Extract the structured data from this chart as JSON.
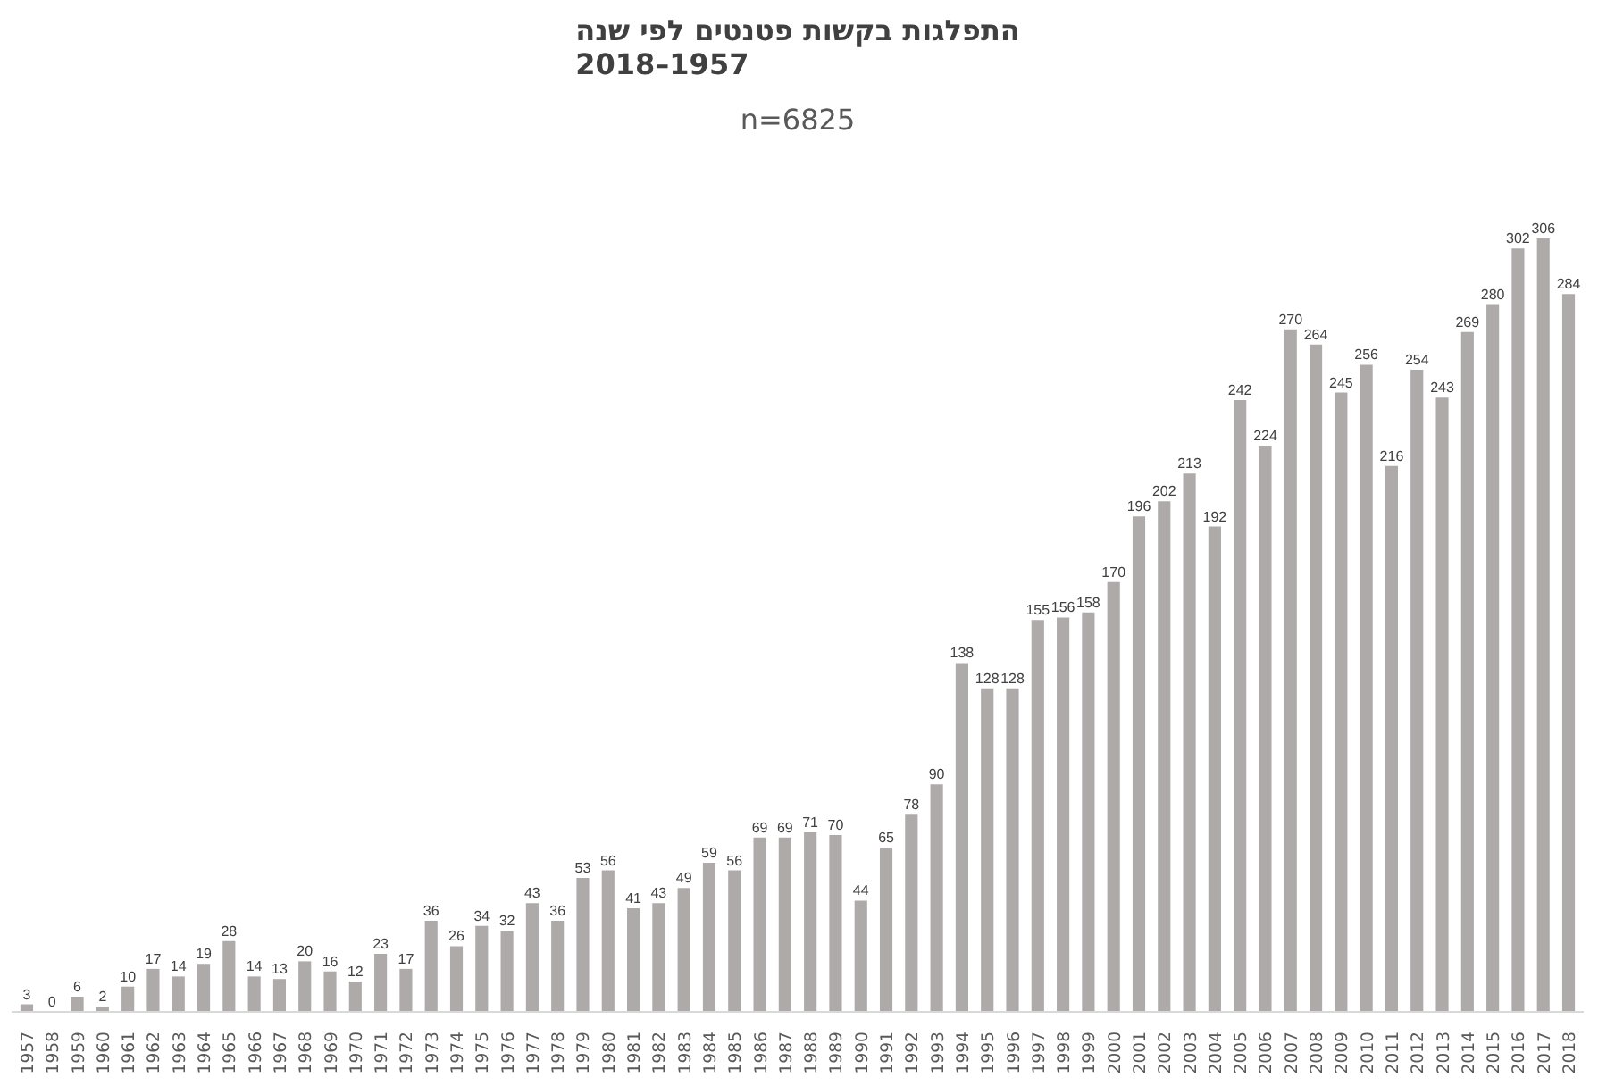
{
  "chart_data": {
    "type": "bar",
    "title": "התפלגות בקשות פטנטים לפי שנה\n2018–1957",
    "subtitle": "n=6825",
    "categories": [
      "1957",
      "1958",
      "1959",
      "1960",
      "1961",
      "1962",
      "1963",
      "1964",
      "1965",
      "1966",
      "1967",
      "1968",
      "1969",
      "1970",
      "1971",
      "1972",
      "1973",
      "1974",
      "1975",
      "1976",
      "1977",
      "1978",
      "1979",
      "1980",
      "1981",
      "1982",
      "1983",
      "1984",
      "1985",
      "1986",
      "1987",
      "1988",
      "1989",
      "1990",
      "1991",
      "1992",
      "1993",
      "1994",
      "1995",
      "1996",
      "1997",
      "1998",
      "1999",
      "2000",
      "2001",
      "2002",
      "2003",
      "2004",
      "2005",
      "2006",
      "2007",
      "2008",
      "2009",
      "2010",
      "2011",
      "2012",
      "2013",
      "2014",
      "2015",
      "2016",
      "2017",
      "2018"
    ],
    "values": [
      3,
      0,
      6,
      2,
      10,
      17,
      14,
      19,
      28,
      14,
      13,
      20,
      16,
      12,
      23,
      17,
      36,
      26,
      34,
      32,
      43,
      36,
      53,
      56,
      41,
      43,
      49,
      59,
      56,
      69,
      69,
      71,
      70,
      44,
      65,
      78,
      90,
      138,
      128,
      128,
      155,
      156,
      158,
      170,
      196,
      202,
      213,
      192,
      242,
      224,
      270,
      264,
      245,
      256,
      216,
      254,
      243,
      269,
      280,
      302,
      306,
      284
    ],
    "color": "#aeaaaa",
    "data_labels": true
  }
}
